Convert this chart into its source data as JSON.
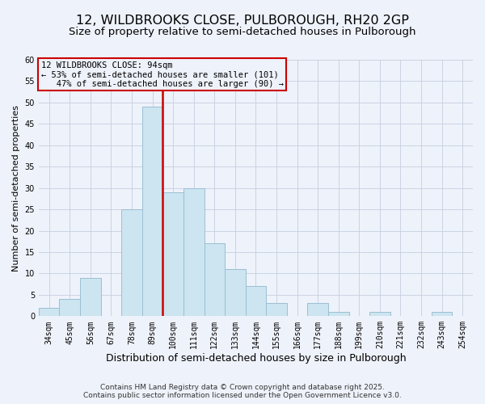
{
  "title": "12, WILDBROOKS CLOSE, PULBOROUGH, RH20 2GP",
  "subtitle": "Size of property relative to semi-detached houses in Pulborough",
  "xlabel": "Distribution of semi-detached houses by size in Pulborough",
  "ylabel": "Number of semi-detached properties",
  "bin_labels": [
    "34sqm",
    "45sqm",
    "56sqm",
    "67sqm",
    "78sqm",
    "89sqm",
    "100sqm",
    "111sqm",
    "122sqm",
    "133sqm",
    "144sqm",
    "155sqm",
    "166sqm",
    "177sqm",
    "188sqm",
    "199sqm",
    "210sqm",
    "221sqm",
    "232sqm",
    "243sqm",
    "254sqm"
  ],
  "bin_values": [
    2,
    4,
    9,
    0,
    25,
    49,
    29,
    30,
    17,
    11,
    7,
    3,
    0,
    3,
    1,
    0,
    1,
    0,
    0,
    1,
    0
  ],
  "bar_color": "#cce5f0",
  "bar_edge_color": "#9bbfd4",
  "vline_x_index": 5.5,
  "vline_color": "#cc0000",
  "annotation_line1": "12 WILDBROOKS CLOSE: 94sqm",
  "annotation_line2": "← 53% of semi-detached houses are smaller (101)",
  "annotation_line3": "   47% of semi-detached houses are larger (90) →",
  "annotation_box_color": "#cc0000",
  "ylim": [
    0,
    60
  ],
  "yticks": [
    0,
    5,
    10,
    15,
    20,
    25,
    30,
    35,
    40,
    45,
    50,
    55,
    60
  ],
  "footer1": "Contains HM Land Registry data © Crown copyright and database right 2025.",
  "footer2": "Contains public sector information licensed under the Open Government Licence v3.0.",
  "background_color": "#eef2fa",
  "grid_color": "#c5cfdf",
  "title_fontsize": 11.5,
  "subtitle_fontsize": 9.5,
  "xlabel_fontsize": 9,
  "ylabel_fontsize": 8,
  "tick_fontsize": 7,
  "annotation_fontsize": 7.5,
  "footer_fontsize": 6.5
}
